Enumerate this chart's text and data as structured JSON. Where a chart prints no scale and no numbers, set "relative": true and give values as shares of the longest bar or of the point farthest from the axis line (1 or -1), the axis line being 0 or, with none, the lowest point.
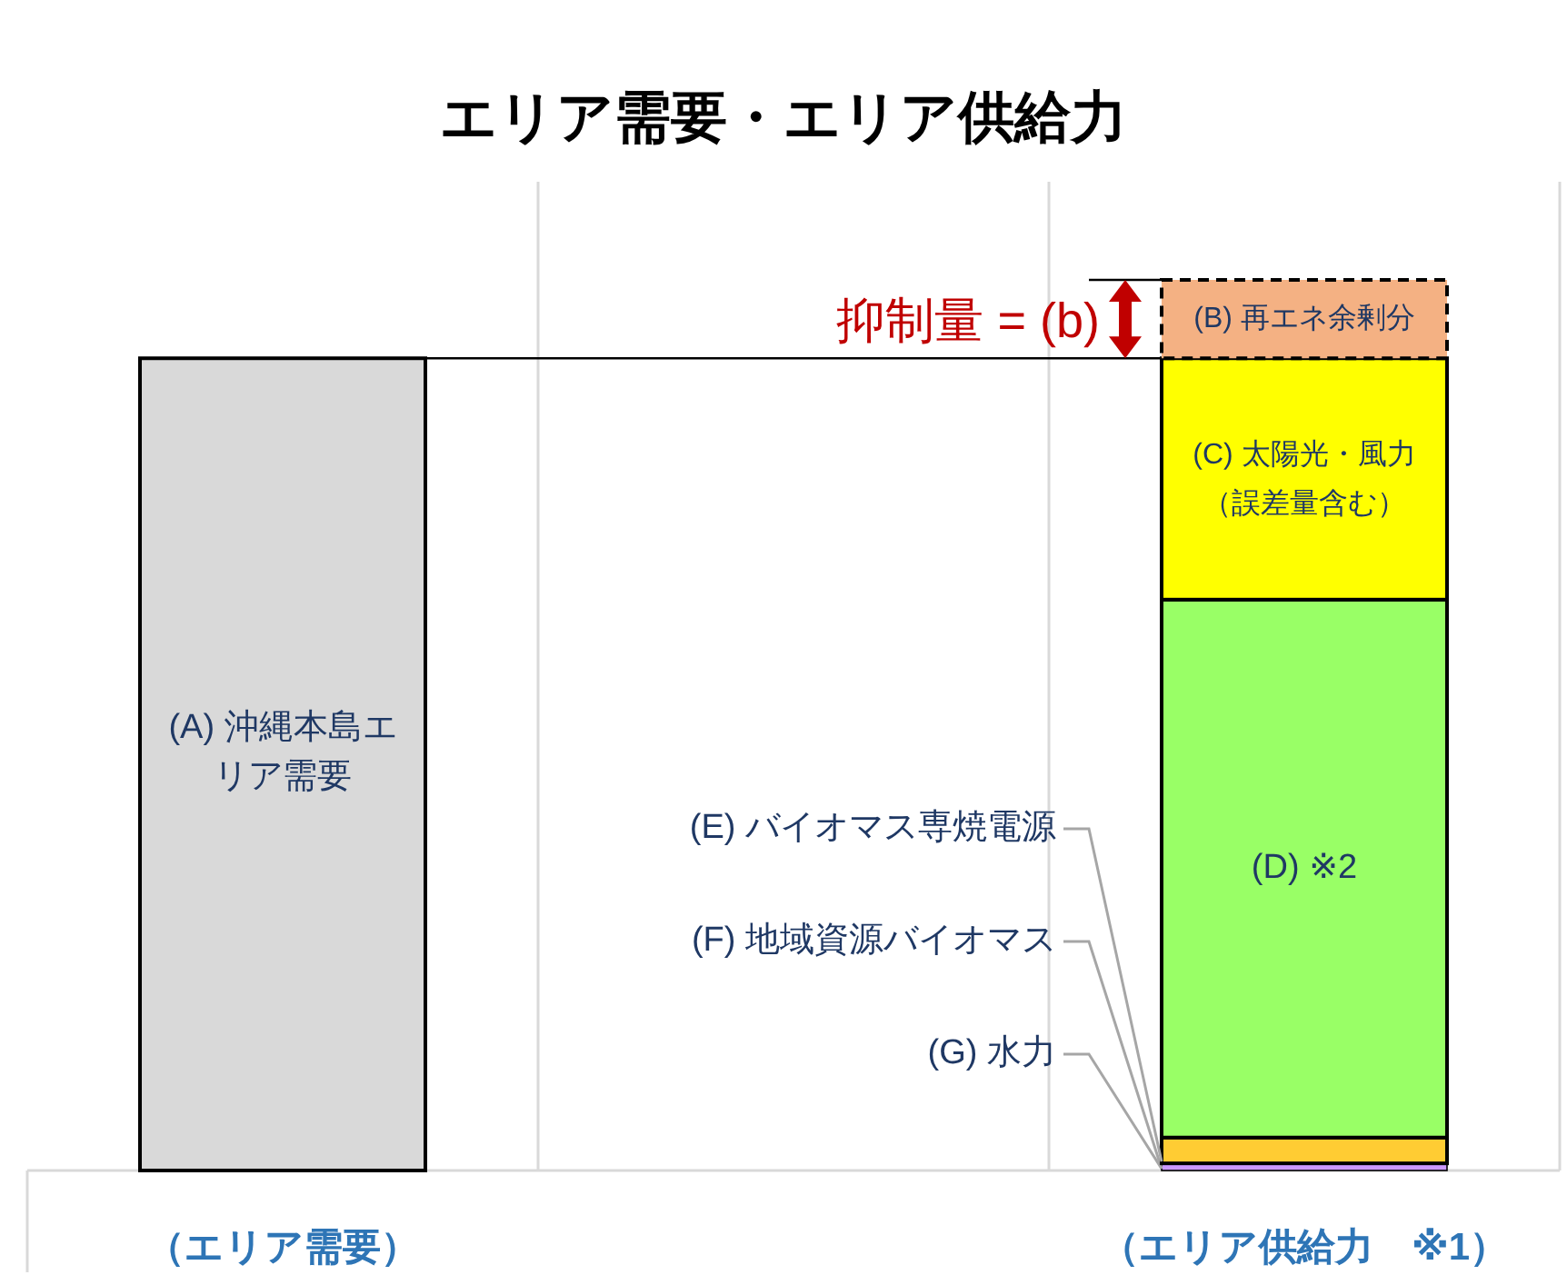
{
  "chart_data": {
    "type": "bar",
    "stacked": true,
    "relative": true,
    "grid": "x",
    "title": "エリア需要・エリア供給力",
    "categories": [
      "（エリア需要）",
      null,
      "（エリア供給力　※1）"
    ],
    "series": [
      {
        "name": "(A) 沖縄本島エリア需要",
        "color": "#d9d9d9",
        "values": [
          0.912,
          null,
          null
        ]
      },
      {
        "name": "(G) 水力",
        "values": [
          null,
          null,
          0
        ]
      },
      {
        "name": "(F) 地域資源バイオマス",
        "color": "#cc99ff",
        "values": [
          null,
          null,
          0.008
        ]
      },
      {
        "name": "(E) バイオマス専焼電源",
        "color": "#ffcc33",
        "values": [
          null,
          null,
          0.029
        ]
      },
      {
        "name": "(D) ※2",
        "color": "#99ff66",
        "values": [
          null,
          null,
          0.604
        ]
      },
      {
        "name": "(C) 太陽光・風力（誤差量含む）",
        "color": "#ffff00",
        "values": [
          null,
          null,
          0.271
        ]
      },
      {
        "name": "(B) 再エネ余剰分",
        "color": "#f4b183",
        "line_style": "dashed",
        "values": [
          null,
          null,
          0.088
        ]
      }
    ],
    "ref_lines": [
      {
        "axis": "y",
        "value": 0.912
      }
    ],
    "annotations": [
      "抑制量 = (b)"
    ]
  }
}
